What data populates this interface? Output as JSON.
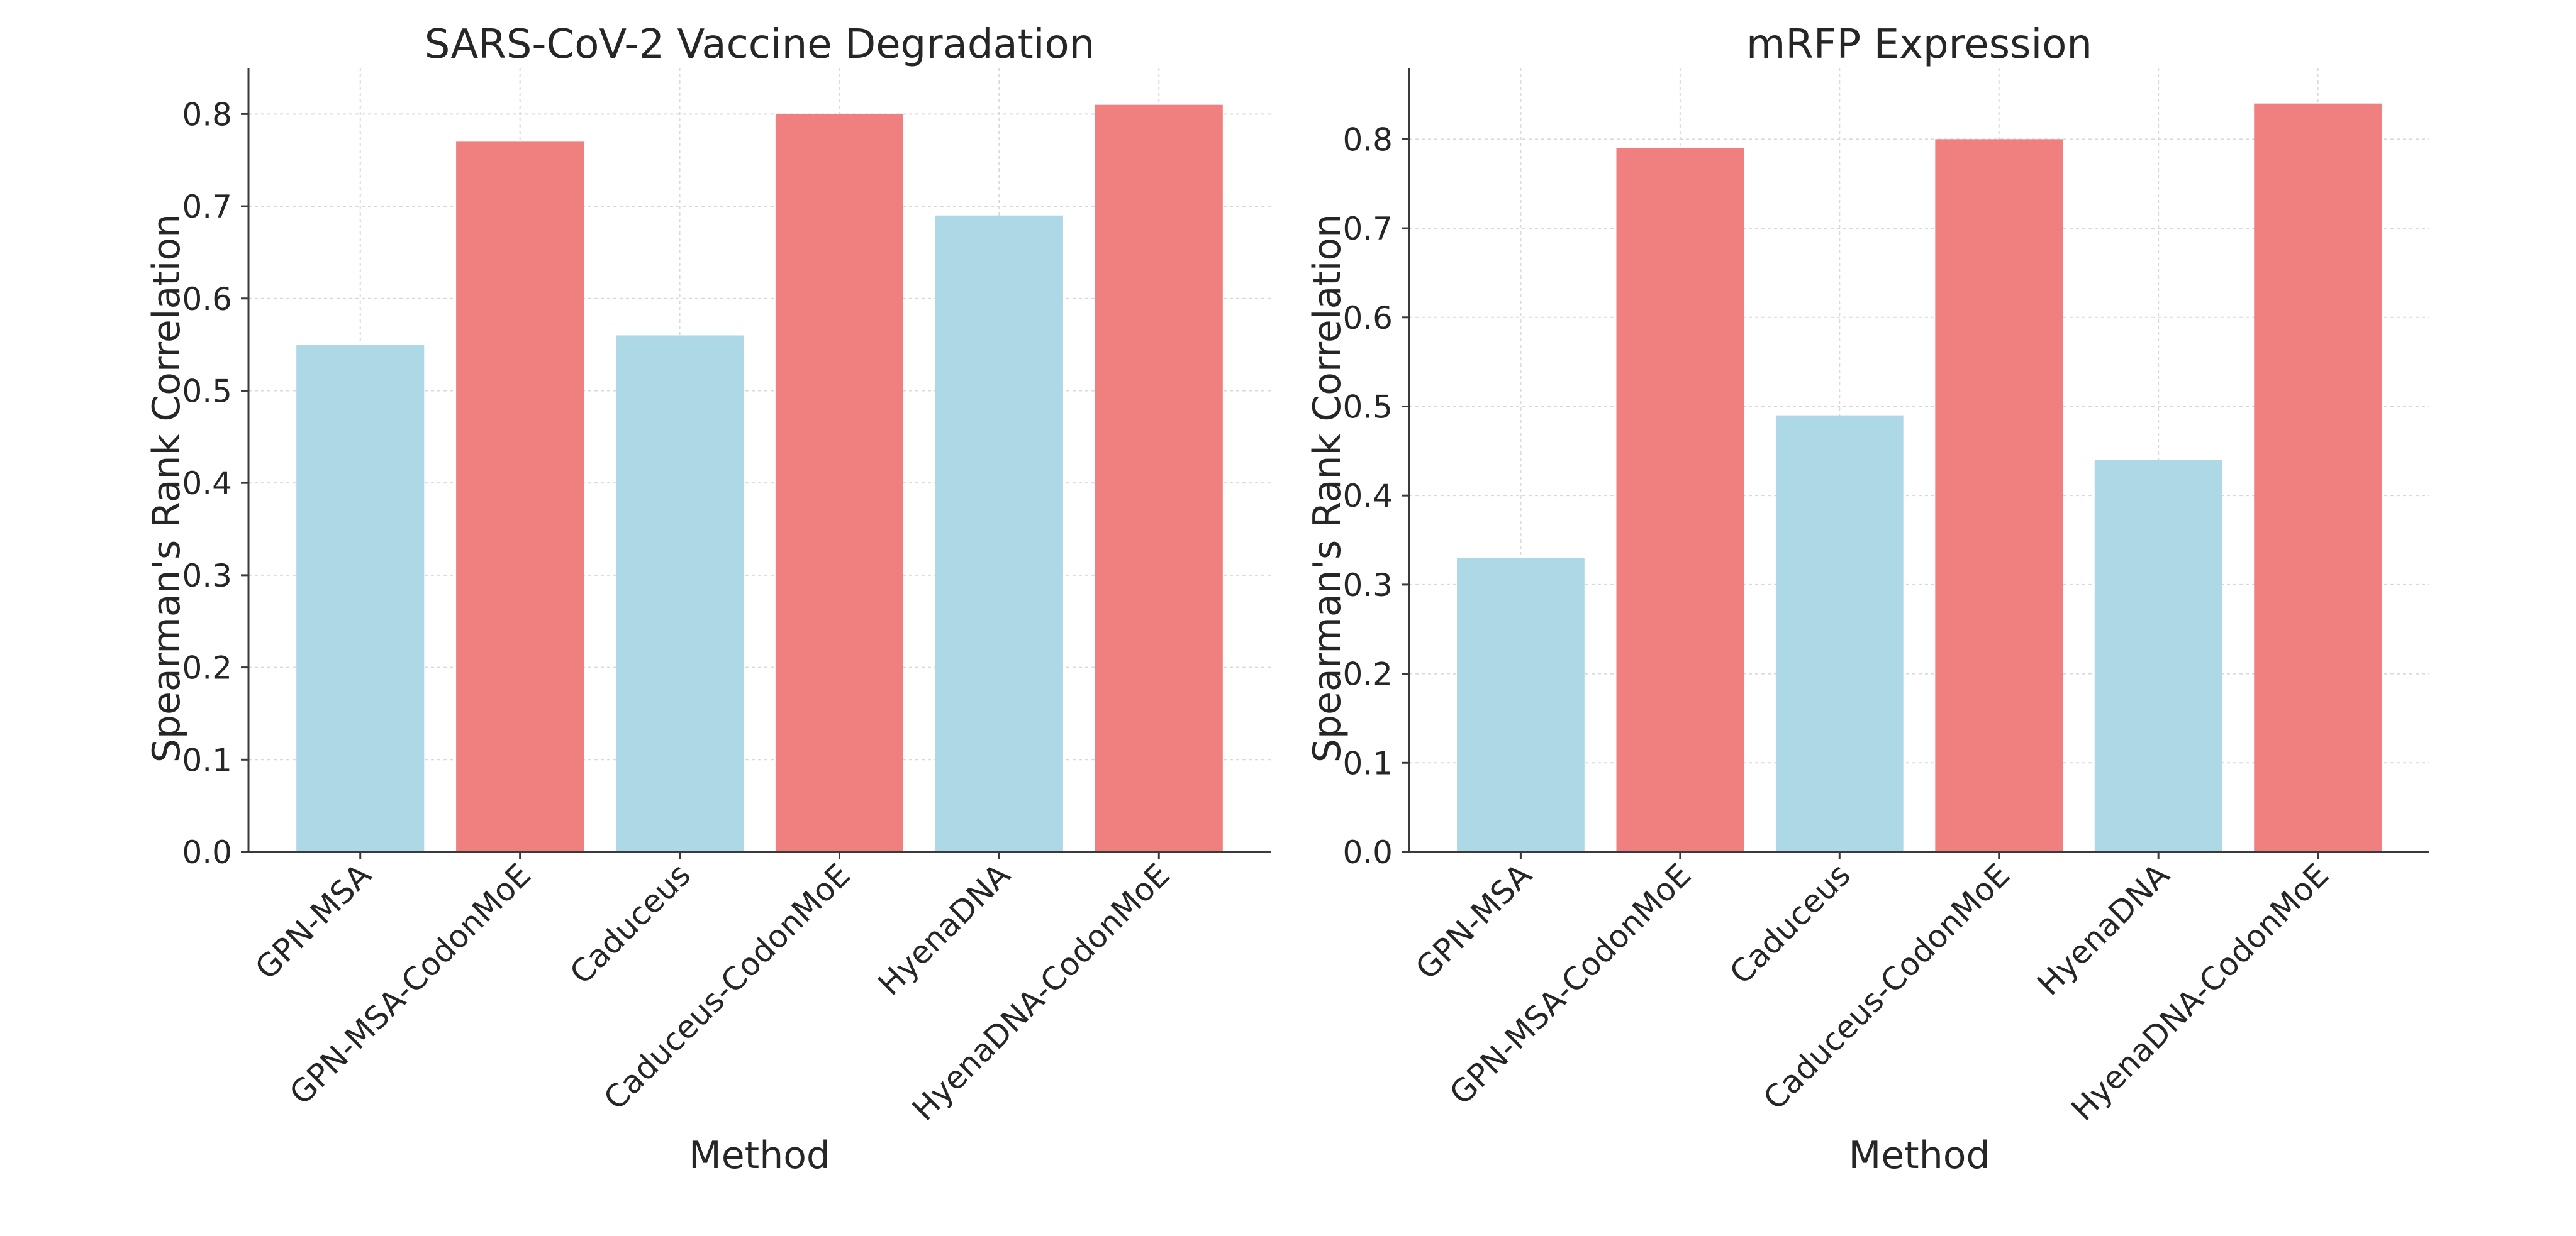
{
  "chart_data": [
    {
      "type": "bar",
      "title": "SARS-CoV-2 Vaccine Degradation",
      "xlabel": "Method",
      "ylabel": "Spearman's Rank Correlation",
      "categories": [
        "GPN-MSA",
        "GPN-MSA-CodonMoE",
        "Caduceus",
        "Caduceus-CodonMoE",
        "HyenaDNA",
        "HyenaDNA-CodonMoE"
      ],
      "values": [
        0.55,
        0.77,
        0.56,
        0.8,
        0.69,
        0.81
      ],
      "bar_colors": [
        "#add8e6",
        "#f08080",
        "#add8e6",
        "#f08080",
        "#add8e6",
        "#f08080"
      ],
      "ylim": [
        0,
        0.85
      ],
      "yticks": [
        "0.0",
        "0.1",
        "0.2",
        "0.3",
        "0.4",
        "0.5",
        "0.6",
        "0.7",
        "0.8"
      ],
      "grid": true
    },
    {
      "type": "bar",
      "title": "mRFP Expression",
      "xlabel": "Method",
      "ylabel": "Spearman's Rank Correlation",
      "categories": [
        "GPN-MSA",
        "GPN-MSA-CodonMoE",
        "Caduceus",
        "Caduceus-CodonMoE",
        "HyenaDNA",
        "HyenaDNA-CodonMoE"
      ],
      "values": [
        0.33,
        0.79,
        0.49,
        0.8,
        0.44,
        0.84
      ],
      "bar_colors": [
        "#add8e6",
        "#f08080",
        "#add8e6",
        "#f08080",
        "#add8e6",
        "#f08080"
      ],
      "ylim": [
        0,
        0.88
      ],
      "yticks": [
        "0.0",
        "0.1",
        "0.2",
        "0.3",
        "0.4",
        "0.5",
        "0.6",
        "0.7",
        "0.8"
      ],
      "grid": true
    }
  ]
}
